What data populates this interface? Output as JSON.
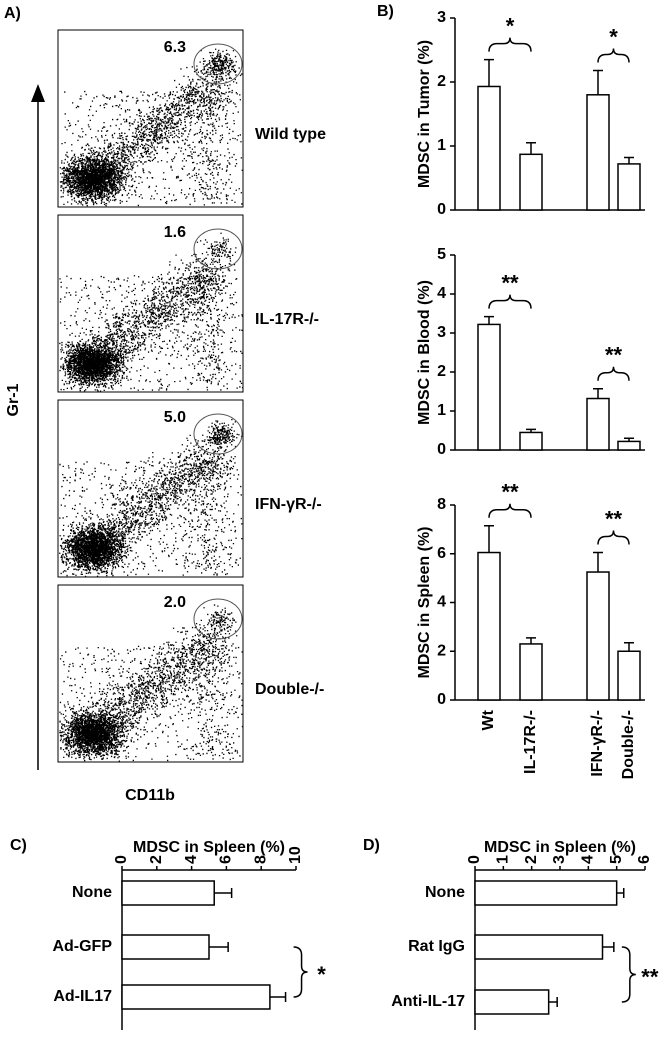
{
  "panel_a": {
    "label": "A)",
    "y_label": "Gr-1",
    "x_label": "CD11b",
    "plots": [
      {
        "percent": "6.3",
        "name": "Wild type"
      },
      {
        "percent": "1.6",
        "name": "IL-17R-/-"
      },
      {
        "percent": "5.0",
        "name": "IFN-γR-/-"
      },
      {
        "percent": "2.0",
        "name": "Double-/-"
      }
    ]
  },
  "chart_data": [
    {
      "type": "bar",
      "panel": "B)",
      "y_label": "MDSC in Tumor (%)",
      "categories": [
        null,
        null,
        null,
        null
      ],
      "values": [
        1.93,
        0.87,
        1.8,
        0.72
      ],
      "errors": [
        0.42,
        0.18,
        0.38,
        0.1
      ],
      "ylim": [
        0,
        3
      ],
      "yticks": [
        0,
        1,
        2,
        3
      ],
      "annotations": [
        "*",
        "*"
      ],
      "color": "#ffffff"
    },
    {
      "type": "bar",
      "y_label": "MDSC in Blood (%)",
      "categories": [
        null,
        null,
        null,
        null
      ],
      "values": [
        3.22,
        0.45,
        1.32,
        0.22
      ],
      "errors": [
        0.2,
        0.08,
        0.25,
        0.08
      ],
      "ylim": [
        0,
        5
      ],
      "yticks": [
        0,
        1,
        2,
        3,
        4,
        5
      ],
      "annotations": [
        "**",
        "**"
      ],
      "color": "#ffffff"
    },
    {
      "type": "bar",
      "y_label": "MDSC in Spleen (%)",
      "categories": [
        "Wt",
        "IL-17R-/-",
        "IFN-γR-/-",
        "Double-/-"
      ],
      "values": [
        6.05,
        2.3,
        5.25,
        2.0
      ],
      "errors": [
        1.1,
        0.25,
        0.8,
        0.35
      ],
      "ylim": [
        0,
        8
      ],
      "yticks": [
        0,
        2,
        4,
        6,
        8
      ],
      "annotations": [
        "**",
        "**"
      ],
      "color": "#ffffff"
    },
    {
      "type": "hbar",
      "panel": "C)",
      "title": "MDSC in Spleen (%)",
      "categories": [
        "None",
        "Ad-GFP",
        "Ad-IL17"
      ],
      "values": [
        5.3,
        5.0,
        8.5
      ],
      "errors": [
        1.0,
        1.1,
        0.9
      ],
      "xlim": [
        0,
        10
      ],
      "xticks": [
        0,
        2,
        4,
        6,
        8,
        10
      ],
      "annotations": [
        "*"
      ],
      "color": "#ffffff"
    },
    {
      "type": "hbar",
      "panel": "D)",
      "title": "MDSC in Spleen (%)",
      "categories": [
        "None",
        "Rat IgG",
        "Anti-IL-17"
      ],
      "values": [
        5.0,
        4.5,
        2.6
      ],
      "errors": [
        0.25,
        0.4,
        0.3
      ],
      "xlim": [
        0,
        6
      ],
      "xticks": [
        0,
        1,
        2,
        3,
        4,
        5,
        6
      ],
      "annotations": [
        "**"
      ],
      "color": "#ffffff"
    }
  ]
}
